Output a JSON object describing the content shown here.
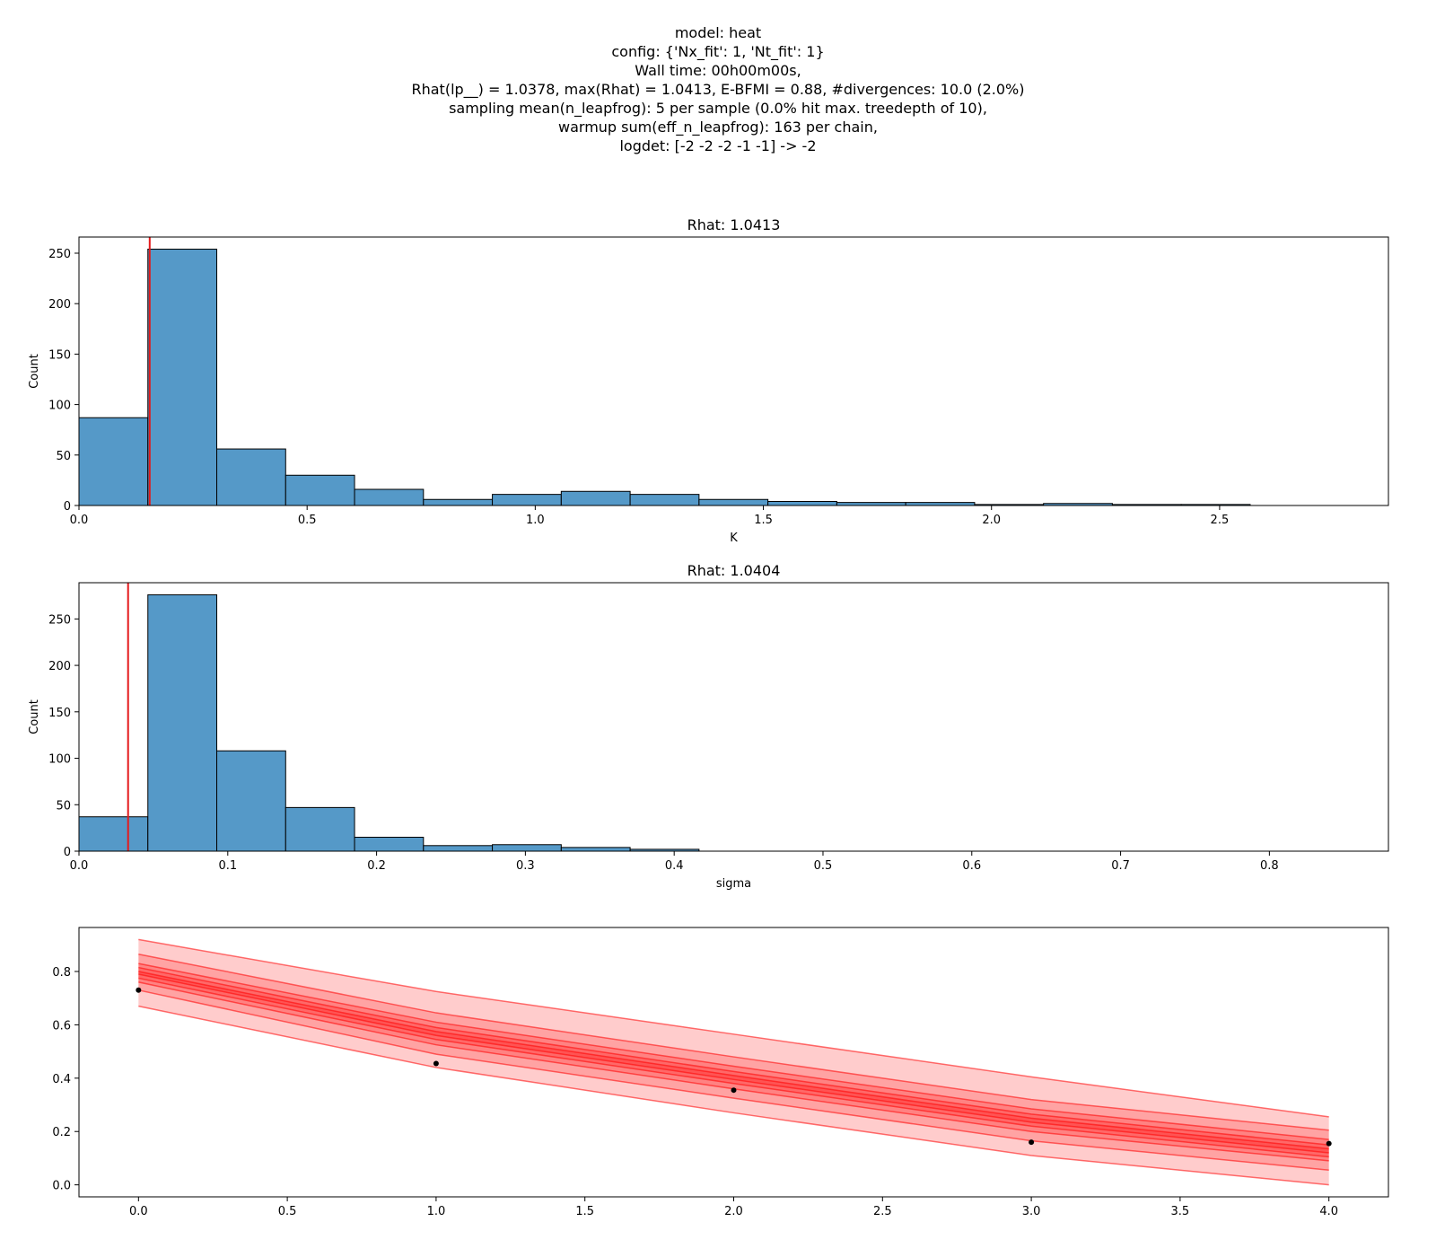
{
  "suptitle": [
    "model: heat",
    "config: {'Nx_fit': 1, 'Nt_fit': 1}",
    "Wall time: 00h00m00s,",
    "Rhat(lp__) = 1.0378, max(Rhat) = 1.0413, E-BFMI = 0.88, #divergences: 10.0 (2.0%)",
    "sampling mean(n_leapfrog): 5 per sample (0.0% hit max. treedepth of 10),",
    "warmup sum(eff_n_leapfrog): 163 per chain,",
    "logdet: [-2 -2 -2 -1 -1] -> -2"
  ],
  "colors": {
    "bar": "#5599c8",
    "edge": "#000000",
    "ref": "#e41a1c",
    "band": "#ff0000",
    "point": "#000000"
  },
  "chart_data": [
    {
      "type": "bar",
      "title": "Rhat: 1.0413",
      "xlabel": "K",
      "ylabel": "Count",
      "xlim": [
        0,
        2.87
      ],
      "ylim": [
        0,
        266
      ],
      "xticks": [
        0.0,
        0.5,
        1.0,
        1.5,
        2.0,
        2.5
      ],
      "xtick_labels": [
        "0.0",
        "0.5",
        "1.0",
        "1.5",
        "2.0",
        "2.5"
      ],
      "yticks": [
        0,
        50,
        100,
        150,
        200,
        250
      ],
      "ytick_labels": [
        "0",
        "50",
        "100",
        "150",
        "200",
        "250"
      ],
      "bin_edges": [
        0.0,
        0.151,
        0.302,
        0.453,
        0.604,
        0.755,
        0.906,
        1.057,
        1.208,
        1.359,
        1.51,
        1.661,
        1.812,
        1.963,
        2.114,
        2.265,
        2.416,
        2.567
      ],
      "counts": [
        87,
        254,
        56,
        30,
        16,
        6,
        11,
        14,
        11,
        6,
        4,
        3,
        3,
        1,
        2,
        1,
        1
      ],
      "ref_line": 0.155,
      "grid": false
    },
    {
      "type": "bar",
      "title": "Rhat: 1.0404",
      "xlabel": "sigma",
      "ylabel": "Count",
      "xlim": [
        0,
        0.88
      ],
      "ylim": [
        0,
        289
      ],
      "xticks": [
        0.0,
        0.1,
        0.2,
        0.3,
        0.4,
        0.5,
        0.6,
        0.7,
        0.8
      ],
      "xtick_labels": [
        "0.0",
        "0.1",
        "0.2",
        "0.3",
        "0.4",
        "0.5",
        "0.6",
        "0.7",
        "0.8"
      ],
      "yticks": [
        0,
        50,
        100,
        150,
        200,
        250
      ],
      "ytick_labels": [
        "0",
        "50",
        "100",
        "150",
        "200",
        "250"
      ],
      "bin_edges": [
        0.0,
        0.0463,
        0.0926,
        0.1389,
        0.1852,
        0.2315,
        0.2778,
        0.3241,
        0.3704,
        0.4167
      ],
      "counts": [
        37,
        276,
        108,
        47,
        15,
        6,
        7,
        4,
        2
      ],
      "ref_line": 0.033,
      "grid": false
    },
    {
      "type": "area",
      "title": "",
      "xlabel": "",
      "ylabel": "",
      "xlim": [
        -0.2,
        4.2
      ],
      "ylim": [
        -0.045,
        0.965
      ],
      "xticks": [
        0.0,
        0.5,
        1.0,
        1.5,
        2.0,
        2.5,
        3.0,
        3.5,
        4.0
      ],
      "xtick_labels": [
        "0.0",
        "0.5",
        "1.0",
        "1.5",
        "2.0",
        "2.5",
        "3.0",
        "3.5",
        "4.0"
      ],
      "yticks": [
        0.0,
        0.2,
        0.4,
        0.6,
        0.8
      ],
      "ytick_labels": [
        "0.0",
        "0.2",
        "0.4",
        "0.6",
        "0.8"
      ],
      "x": [
        0,
        1,
        2,
        3,
        4
      ],
      "quantile_lines": [
        [
          0.67,
          0.44,
          0.27,
          0.11,
          0.0
        ],
        [
          0.73,
          0.49,
          0.325,
          0.165,
          0.055
        ],
        [
          0.76,
          0.525,
          0.36,
          0.2,
          0.09
        ],
        [
          0.775,
          0.545,
          0.38,
          0.22,
          0.105
        ],
        [
          0.79,
          0.56,
          0.395,
          0.235,
          0.12
        ],
        [
          0.8,
          0.575,
          0.41,
          0.25,
          0.135
        ],
        [
          0.815,
          0.59,
          0.425,
          0.265,
          0.15
        ],
        [
          0.83,
          0.61,
          0.445,
          0.285,
          0.17
        ],
        [
          0.865,
          0.645,
          0.48,
          0.32,
          0.205
        ],
        [
          0.92,
          0.725,
          0.565,
          0.405,
          0.255
        ]
      ],
      "observations": {
        "x": [
          0,
          1,
          2,
          3,
          4
        ],
        "y": [
          0.73,
          0.455,
          0.355,
          0.16,
          0.155
        ]
      },
      "grid": false
    }
  ]
}
